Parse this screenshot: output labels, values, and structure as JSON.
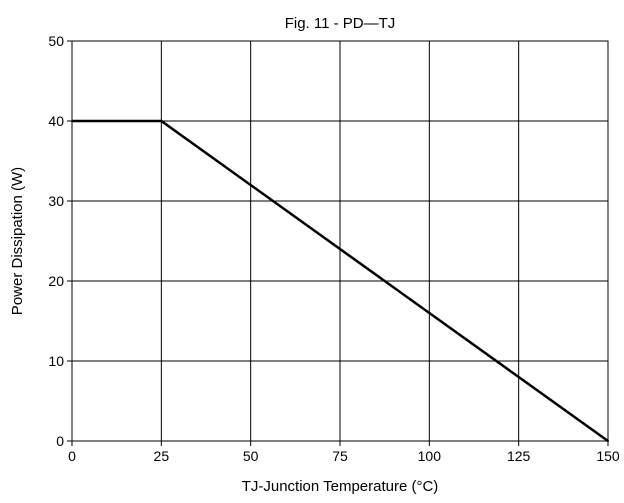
{
  "chart_data": {
    "type": "line",
    "title": "Fig. 11 - PD—TJ",
    "xlabel": "TJ-Junction Temperature (°C)",
    "ylabel": "Power Dissipation  (W)",
    "xlim": [
      0,
      150
    ],
    "ylim": [
      0,
      50
    ],
    "x_ticks": [
      0,
      25,
      50,
      75,
      100,
      125,
      150
    ],
    "y_ticks": [
      0,
      10,
      20,
      30,
      40,
      50
    ],
    "x_tick_labels": [
      "0",
      "25",
      "50",
      "75",
      "100",
      "125",
      "150"
    ],
    "y_tick_labels": [
      "0",
      "10",
      "20",
      "30",
      "40",
      "50"
    ],
    "grid": true,
    "legend": "none",
    "line_color": "#000000",
    "series": [
      {
        "x": [
          0,
          25,
          150
        ],
        "y": [
          40,
          40,
          0
        ]
      }
    ]
  }
}
